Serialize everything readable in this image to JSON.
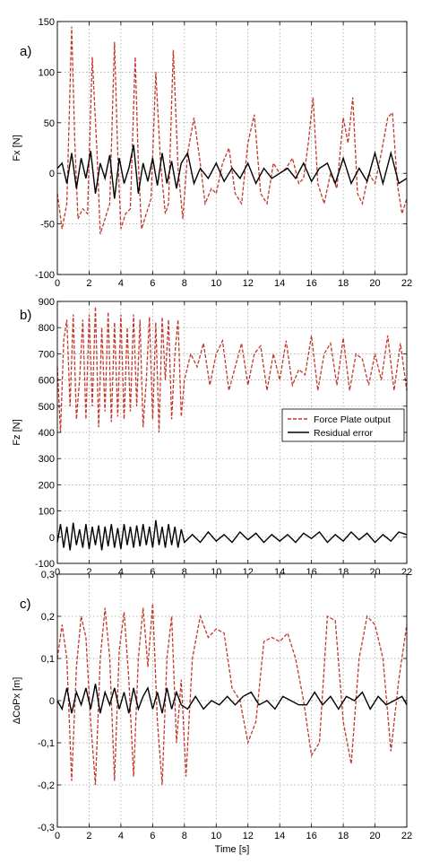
{
  "colors": {
    "force": "#c0392b",
    "residual": "#000000",
    "grid": "#9a9a9a"
  },
  "chart_data": [
    {
      "type": "line",
      "panel_label": "a)",
      "ylabel": "Fx [N]",
      "xlabel": "",
      "xlim": [
        0,
        22
      ],
      "ylim": [
        -100,
        150
      ],
      "xticks": [
        0,
        2,
        4,
        6,
        8,
        10,
        12,
        14,
        16,
        18,
        20,
        22
      ],
      "yticks": [
        -100,
        -50,
        0,
        50,
        100,
        150
      ],
      "ytick_labels": [
        "-100",
        "-50",
        "0",
        "50",
        "100",
        "150"
      ],
      "grid": true,
      "series": [
        {
          "name": "Force Plate output",
          "style": "dashed",
          "x": [
            0,
            0.3,
            0.6,
            0.9,
            1.1,
            1.3,
            1.6,
            1.9,
            2.2,
            2.5,
            2.7,
            3.0,
            3.3,
            3.6,
            3.8,
            4.0,
            4.3,
            4.6,
            4.9,
            5.1,
            5.3,
            5.6,
            5.9,
            6.2,
            6.5,
            6.8,
            7.0,
            7.3,
            7.6,
            7.9,
            8.2,
            8.6,
            9.0,
            9.3,
            9.7,
            10.0,
            10.4,
            10.8,
            11.2,
            11.6,
            12.0,
            12.4,
            12.8,
            13.2,
            13.6,
            14.0,
            14.4,
            14.8,
            15.2,
            15.5,
            15.8,
            16.1,
            16.4,
            16.8,
            17.2,
            17.6,
            18.0,
            18.3,
            18.6,
            18.9,
            19.2,
            19.6,
            20.0,
            20.4,
            20.8,
            21.1,
            21.4,
            21.7,
            22.0
          ],
          "y": [
            -20,
            -55,
            -30,
            145,
            30,
            -45,
            -35,
            -40,
            115,
            20,
            -60,
            -45,
            -30,
            130,
            20,
            -55,
            -40,
            -35,
            115,
            10,
            -55,
            -40,
            -25,
            100,
            10,
            -40,
            -30,
            122,
            5,
            -45,
            20,
            55,
            10,
            -30,
            -15,
            -20,
            10,
            25,
            -20,
            -30,
            30,
            58,
            -20,
            -30,
            10,
            0,
            5,
            15,
            -10,
            -5,
            30,
            75,
            -10,
            -30,
            0,
            -15,
            55,
            30,
            75,
            -20,
            -30,
            0,
            -10,
            20,
            55,
            60,
            -10,
            -40,
            -25
          ]
        },
        {
          "name": "Residual error",
          "style": "solid",
          "x": [
            0,
            0.3,
            0.6,
            0.9,
            1.2,
            1.5,
            1.8,
            2.1,
            2.4,
            2.7,
            3.0,
            3.3,
            3.6,
            3.9,
            4.2,
            4.5,
            4.8,
            5.1,
            5.4,
            5.7,
            6.0,
            6.3,
            6.6,
            6.9,
            7.2,
            7.5,
            7.8,
            8.2,
            8.6,
            9.0,
            9.5,
            10.0,
            10.5,
            11.0,
            11.5,
            12.0,
            12.5,
            13.0,
            13.5,
            14.0,
            14.5,
            15.0,
            15.5,
            16.0,
            16.5,
            17.0,
            17.5,
            18.0,
            18.5,
            19.0,
            19.5,
            20.0,
            20.5,
            21.0,
            21.5,
            22.0
          ],
          "y": [
            5,
            10,
            -10,
            20,
            -15,
            15,
            -5,
            22,
            -20,
            10,
            -5,
            18,
            -25,
            15,
            -10,
            5,
            28,
            -20,
            10,
            -8,
            15,
            -12,
            20,
            -10,
            12,
            -15,
            10,
            20,
            -10,
            5,
            -5,
            10,
            -8,
            5,
            -5,
            10,
            -10,
            5,
            -5,
            0,
            5,
            -5,
            10,
            -8,
            5,
            10,
            -10,
            15,
            -10,
            5,
            -8,
            20,
            -10,
            20,
            -10,
            -5
          ]
        }
      ]
    },
    {
      "type": "line",
      "panel_label": "b)",
      "ylabel": "Fz [N]",
      "xlabel": "",
      "xlim": [
        0,
        22
      ],
      "ylim": [
        -100,
        900
      ],
      "xticks": [
        0,
        2,
        4,
        6,
        8,
        10,
        12,
        14,
        16,
        18,
        20,
        22
      ],
      "yticks": [
        -100,
        0,
        100,
        200,
        300,
        400,
        500,
        600,
        700,
        800,
        900
      ],
      "ytick_labels": [
        "-100",
        "0",
        "100",
        "200",
        "300",
        "400",
        "500",
        "600",
        "700",
        "800",
        "900"
      ],
      "grid": true,
      "legend": {
        "placement": "right",
        "entries": [
          "Force Plate output",
          "Residual error"
        ]
      },
      "series": [
        {
          "name": "Force Plate output",
          "style": "dashed",
          "x": [
            0,
            0.2,
            0.4,
            0.6,
            0.8,
            1.0,
            1.2,
            1.4,
            1.6,
            1.8,
            2.0,
            2.2,
            2.4,
            2.6,
            2.8,
            3.0,
            3.2,
            3.4,
            3.6,
            3.8,
            4.0,
            4.2,
            4.4,
            4.6,
            4.8,
            5.0,
            5.2,
            5.4,
            5.6,
            5.8,
            6.0,
            6.2,
            6.4,
            6.6,
            6.8,
            7.0,
            7.2,
            7.4,
            7.6,
            7.8,
            8.0,
            8.4,
            8.8,
            9.2,
            9.6,
            10.0,
            10.4,
            10.8,
            11.2,
            11.6,
            12.0,
            12.4,
            12.8,
            13.2,
            13.6,
            14.0,
            14.4,
            14.8,
            15.2,
            15.6,
            16.0,
            16.4,
            16.8,
            17.2,
            17.6,
            18.0,
            18.4,
            18.8,
            19.2,
            19.6,
            20.0,
            20.4,
            20.8,
            21.2,
            21.6,
            22.0
          ],
          "y": [
            650,
            400,
            750,
            830,
            500,
            850,
            450,
            600,
            830,
            450,
            850,
            500,
            880,
            420,
            800,
            480,
            860,
            440,
            820,
            460,
            850,
            450,
            800,
            480,
            850,
            500,
            830,
            420,
            600,
            840,
            450,
            820,
            400,
            840,
            600,
            830,
            450,
            700,
            830,
            460,
            600,
            700,
            650,
            740,
            580,
            700,
            750,
            560,
            650,
            740,
            580,
            700,
            730,
            560,
            700,
            600,
            750,
            580,
            640,
            620,
            770,
            560,
            700,
            740,
            580,
            760,
            560,
            700,
            680,
            580,
            700,
            600,
            770,
            560,
            740,
            560
          ]
        },
        {
          "name": "Residual error",
          "style": "solid",
          "x": [
            0,
            0.2,
            0.4,
            0.6,
            0.8,
            1.0,
            1.2,
            1.4,
            1.6,
            1.8,
            2.0,
            2.2,
            2.4,
            2.6,
            2.8,
            3.0,
            3.2,
            3.4,
            3.6,
            3.8,
            4.0,
            4.2,
            4.4,
            4.6,
            4.8,
            5.0,
            5.2,
            5.4,
            5.6,
            5.8,
            6.0,
            6.2,
            6.4,
            6.6,
            6.8,
            7.0,
            7.2,
            7.4,
            7.6,
            7.8,
            8.0,
            8.5,
            9.0,
            9.5,
            10.0,
            10.5,
            11.0,
            11.5,
            12.0,
            12.5,
            13.0,
            13.5,
            14.0,
            14.5,
            15.0,
            15.5,
            16.0,
            16.5,
            17.0,
            17.5,
            18.0,
            18.5,
            19.0,
            19.5,
            20.0,
            20.5,
            21.0,
            21.5,
            22.0
          ],
          "y": [
            -20,
            50,
            -40,
            40,
            -50,
            55,
            -30,
            30,
            -40,
            50,
            -45,
            40,
            -30,
            45,
            -50,
            40,
            -35,
            50,
            -40,
            35,
            -45,
            50,
            -30,
            40,
            -40,
            45,
            -35,
            50,
            -30,
            40,
            -40,
            65,
            -30,
            40,
            -40,
            50,
            -30,
            40,
            -40,
            30,
            -20,
            10,
            -20,
            20,
            -15,
            10,
            -20,
            20,
            -10,
            15,
            -20,
            10,
            -15,
            10,
            -20,
            15,
            -5,
            20,
            -20,
            10,
            -15,
            20,
            -10,
            15,
            -20,
            10,
            -15,
            20,
            10
          ]
        }
      ]
    },
    {
      "type": "line",
      "panel_label": "c)",
      "ylabel": "ΔCoPx [m]",
      "xlabel": "Time [s]",
      "xlim": [
        0,
        22
      ],
      "ylim": [
        -0.3,
        0.3
      ],
      "xticks": [
        0,
        2,
        4,
        6,
        8,
        10,
        12,
        14,
        16,
        18,
        20,
        22
      ],
      "yticks": [
        -0.3,
        -0.2,
        -0.1,
        0,
        0.1,
        0.2,
        0.3
      ],
      "ytick_labels": [
        "-0,3",
        "-0,2",
        "-0,1",
        "0",
        "0,1",
        "0,2",
        "0,3"
      ],
      "grid": true,
      "series": [
        {
          "name": "Force Plate output",
          "style": "dashed",
          "x": [
            0,
            0.3,
            0.6,
            0.9,
            1.2,
            1.5,
            1.8,
            2.1,
            2.4,
            2.7,
            3.0,
            3.3,
            3.6,
            3.9,
            4.2,
            4.5,
            4.8,
            5.1,
            5.4,
            5.7,
            6.0,
            6.3,
            6.6,
            6.9,
            7.2,
            7.5,
            7.8,
            8.1,
            8.5,
            9.0,
            9.5,
            10.0,
            10.5,
            11.0,
            11.5,
            12.0,
            12.5,
            13.0,
            13.5,
            14.0,
            14.5,
            15.0,
            15.5,
            16.0,
            16.5,
            17.0,
            17.5,
            18.0,
            18.5,
            19.0,
            19.5,
            20.0,
            20.5,
            21.0,
            21.5,
            22.0
          ],
          "y": [
            0.1,
            0.18,
            0.1,
            -0.19,
            0.08,
            0.2,
            0.15,
            -0.05,
            -0.2,
            0.1,
            0.22,
            0.1,
            -0.19,
            0.12,
            0.21,
            0.05,
            -0.18,
            0.1,
            0.22,
            0.08,
            0.23,
            -0.05,
            -0.2,
            0.1,
            0.2,
            -0.1,
            0.05,
            -0.18,
            0.1,
            0.2,
            0.15,
            0.17,
            0.16,
            0.03,
            0.0,
            -0.1,
            -0.05,
            0.14,
            0.15,
            0.14,
            0.16,
            0.1,
            0.0,
            -0.13,
            -0.1,
            0.2,
            0.19,
            -0.05,
            -0.15,
            0.1,
            0.2,
            0.18,
            0.1,
            -0.12,
            0.05,
            0.18
          ]
        },
        {
          "name": "Residual error",
          "style": "solid",
          "x": [
            0,
            0.3,
            0.6,
            0.9,
            1.2,
            1.5,
            1.8,
            2.1,
            2.4,
            2.7,
            3.0,
            3.3,
            3.6,
            3.9,
            4.2,
            4.5,
            4.8,
            5.1,
            5.4,
            5.7,
            6.0,
            6.3,
            6.6,
            6.9,
            7.2,
            7.5,
            7.8,
            8.2,
            8.7,
            9.2,
            9.7,
            10.2,
            10.7,
            11.2,
            11.7,
            12.2,
            12.7,
            13.2,
            13.7,
            14.2,
            14.7,
            15.2,
            15.7,
            16.2,
            16.7,
            17.2,
            17.7,
            18.2,
            18.7,
            19.2,
            19.7,
            20.2,
            20.7,
            21.2,
            21.7,
            22.0
          ],
          "y": [
            0.0,
            -0.02,
            0.03,
            -0.03,
            0.02,
            -0.01,
            0.03,
            -0.02,
            0.04,
            -0.03,
            0.02,
            -0.01,
            0.03,
            -0.02,
            0.02,
            -0.03,
            0.03,
            -0.02,
            0.01,
            0.03,
            -0.02,
            0.02,
            -0.03,
            0.03,
            -0.02,
            0.02,
            -0.01,
            -0.02,
            0.01,
            -0.02,
            0.0,
            -0.01,
            0.01,
            -0.01,
            0.01,
            0.02,
            -0.01,
            0.0,
            -0.02,
            0.01,
            0.0,
            -0.01,
            -0.01,
            0.02,
            -0.01,
            0.01,
            -0.02,
            0.01,
            0.0,
            0.02,
            -0.02,
            0.01,
            -0.01,
            0.0,
            0.01,
            -0.01
          ]
        }
      ]
    }
  ]
}
